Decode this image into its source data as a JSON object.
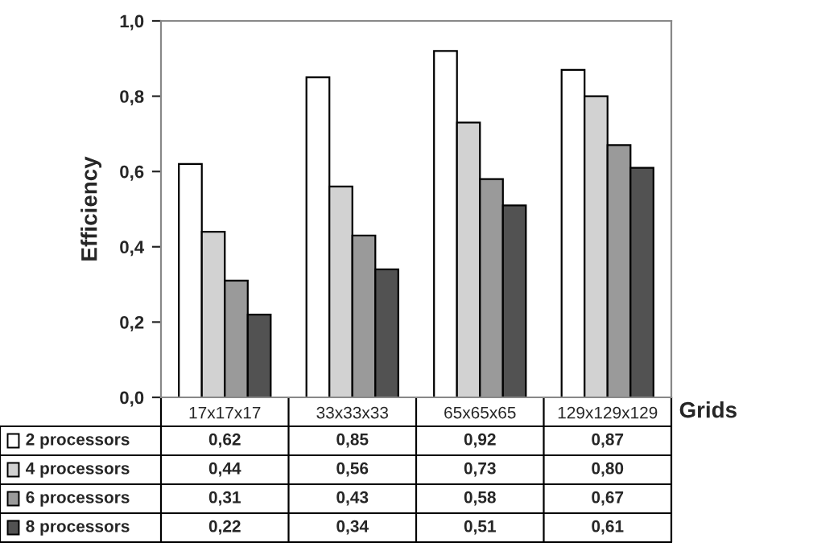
{
  "chart_data": {
    "type": "bar",
    "xlabel": "Grids",
    "ylabel": "Efficiency",
    "categories": [
      "17x17x17",
      "33x33x33",
      "65x65x65",
      "129x129x129"
    ],
    "series": [
      {
        "name": "2 processors",
        "color": "#ffffff",
        "values": [
          0.62,
          0.85,
          0.92,
          0.87
        ],
        "value_labels": [
          "0,62",
          "0,85",
          "0,92",
          "0,87"
        ]
      },
      {
        "name": "4 processors",
        "color": "#d2d2d2",
        "values": [
          0.44,
          0.56,
          0.73,
          0.8
        ],
        "value_labels": [
          "0,44",
          "0,56",
          "0,73",
          "0,80"
        ]
      },
      {
        "name": "6 processors",
        "color": "#9a9a9a",
        "values": [
          0.31,
          0.43,
          0.58,
          0.67
        ],
        "value_labels": [
          "0,31",
          "0,43",
          "0,58",
          "0,67"
        ]
      },
      {
        "name": "8 processors",
        "color": "#525252",
        "values": [
          0.22,
          0.34,
          0.51,
          0.61
        ],
        "value_labels": [
          "0,22",
          "0,34",
          "0,51",
          "0,61"
        ]
      }
    ],
    "ylim": [
      0,
      1
    ],
    "yticks": [
      {
        "value": 0,
        "label": "0,0"
      },
      {
        "value": 0.2,
        "label": "0,2"
      },
      {
        "value": 0.4,
        "label": "0,4"
      },
      {
        "value": 0.6,
        "label": "0,6"
      },
      {
        "value": 0.8,
        "label": "0,8"
      },
      {
        "value": 1,
        "label": "1,0"
      }
    ],
    "legend": "bottom",
    "grid": false
  }
}
